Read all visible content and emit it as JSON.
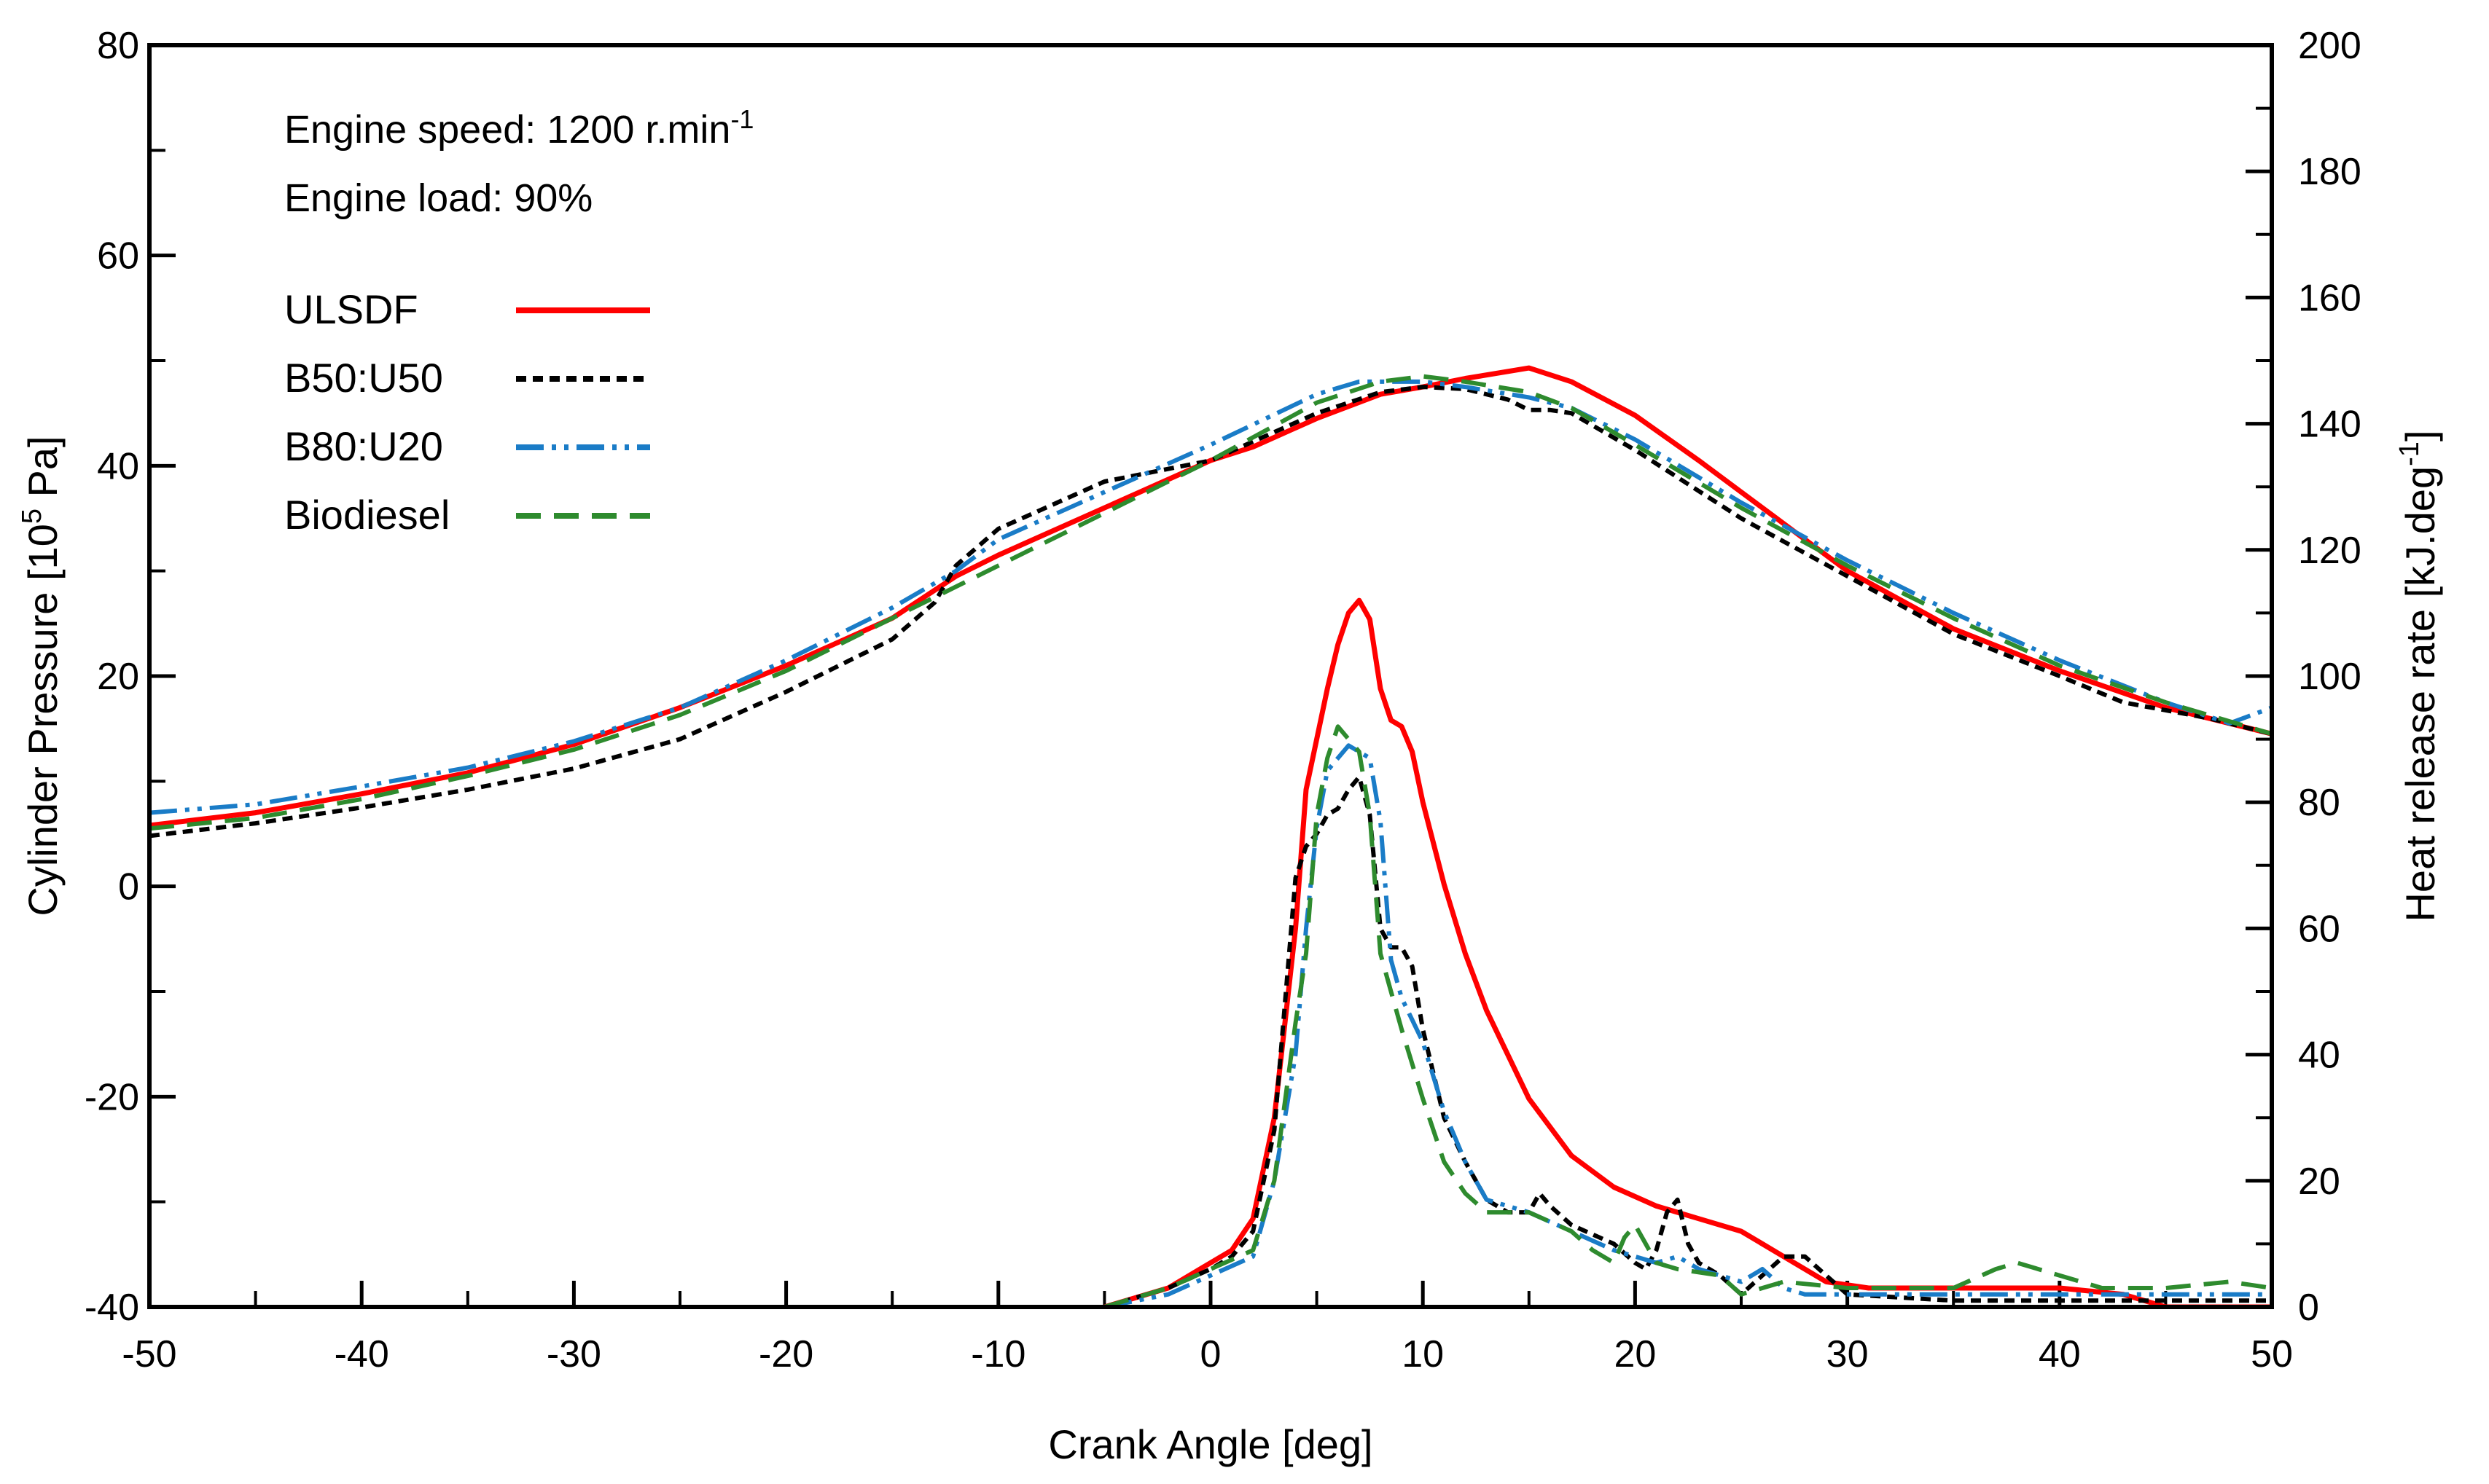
{
  "chart_data": {
    "type": "line",
    "title": "",
    "xlabel": "Crank Angle [deg]",
    "ylabel_left": {
      "prefix": "Cylinder Pressure [10",
      "sup": "5",
      "suffix": " Pa]"
    },
    "ylabel_right": {
      "prefix": "Heat release rate [kJ.deg",
      "sup": "-1",
      "suffix": "]"
    },
    "xlim": [
      -50,
      50
    ],
    "ylim_left": [
      -40,
      80
    ],
    "ylim_right": [
      0,
      200
    ],
    "x_ticks": [
      -50,
      -40,
      -30,
      -20,
      -10,
      0,
      10,
      20,
      30,
      40,
      50
    ],
    "y_left_ticks": [
      -40,
      -20,
      0,
      20,
      40,
      60,
      80
    ],
    "y_right_ticks": [
      0,
      20,
      40,
      60,
      80,
      100,
      120,
      140,
      160,
      180,
      200
    ],
    "annotations": {
      "speed": {
        "prefix": "Engine speed: 1200 r.min",
        "sup": "-1"
      },
      "load": "Engine load: 90%"
    },
    "legend_position": "top-left",
    "series": [
      {
        "name": "ULSDF",
        "color": "#ff0000",
        "dash": "solid",
        "pressure": {
          "x": [
            -50,
            -45,
            -40,
            -35,
            -30,
            -25,
            -20,
            -15,
            -12,
            -10,
            -5,
            0,
            2,
            5,
            8,
            10,
            12,
            15,
            17,
            20,
            23,
            25,
            28,
            30,
            35,
            40,
            45,
            50
          ],
          "y": [
            5.8,
            7.0,
            8.8,
            10.8,
            13.5,
            17.0,
            21.0,
            25.5,
            29.5,
            31.5,
            36.0,
            40.5,
            41.8,
            44.5,
            46.8,
            47.5,
            48.3,
            49.3,
            48.0,
            44.8,
            40.5,
            37.5,
            33.0,
            30.0,
            24.5,
            20.5,
            17.0,
            14.5
          ]
        },
        "hrr": {
          "x": [
            -5,
            -2,
            0,
            1,
            2,
            3,
            4,
            4.5,
            5,
            5.5,
            6,
            6.5,
            7,
            7.5,
            8,
            8.5,
            9,
            9.5,
            10,
            11,
            12,
            13,
            14,
            15,
            17,
            19,
            21,
            23,
            25,
            27,
            29,
            31,
            35,
            40,
            43,
            45,
            47,
            50
          ],
          "y": [
            0,
            3,
            7,
            9,
            14,
            30,
            60,
            82,
            90,
            98,
            105,
            110,
            112,
            109,
            98,
            93,
            92,
            88,
            80,
            67,
            56,
            47,
            40,
            33,
            24,
            19,
            16,
            14,
            12,
            8,
            4,
            3,
            3,
            3,
            2,
            0,
            0,
            0
          ]
        }
      },
      {
        "name": "B50:U50",
        "color": "#000000",
        "dash": "short-dash",
        "pressure": {
          "x": [
            -50,
            -45,
            -40,
            -35,
            -30,
            -25,
            -20,
            -15,
            -13,
            -12,
            -10,
            -5,
            0,
            5,
            8,
            10,
            12,
            14,
            15,
            16,
            17,
            20,
            25,
            30,
            35,
            40,
            43,
            47,
            50
          ],
          "y": [
            4.8,
            6.0,
            7.5,
            9.2,
            11.2,
            14.0,
            18.5,
            23.5,
            27.0,
            30.5,
            34.0,
            38.5,
            40.5,
            45.0,
            47.0,
            47.5,
            47.3,
            46.3,
            45.3,
            45.3,
            45.0,
            41.5,
            35.0,
            29.5,
            24.0,
            20.0,
            17.5,
            16.0,
            14.5
          ]
        },
        "hrr": {
          "x": [
            -5,
            -2,
            0,
            1,
            2,
            3,
            3.5,
            4,
            4.5,
            5,
            5.5,
            6,
            6.5,
            7,
            7.5,
            8,
            8.5,
            9,
            9.5,
            10,
            11,
            12,
            13,
            14,
            15,
            15.5,
            16,
            17,
            19,
            20,
            20.5,
            21,
            21.5,
            22,
            22.5,
            23,
            24,
            25,
            26,
            27,
            28,
            29,
            30,
            35,
            40,
            45,
            50
          ],
          "y": [
            0,
            3,
            6,
            8,
            12,
            28,
            48,
            68,
            73,
            75,
            78,
            79,
            82,
            84,
            78,
            60,
            57,
            57,
            54,
            44,
            30,
            23,
            17,
            15,
            15,
            18,
            16,
            13,
            10,
            7,
            6,
            9,
            15,
            17,
            10,
            7,
            5,
            2,
            5,
            8,
            8,
            5,
            2,
            1,
            1,
            1,
            1
          ]
        }
      },
      {
        "name": "B80:U20",
        "color": "#1a7cc7",
        "dash": "dash-dot-dot",
        "pressure": {
          "x": [
            -50,
            -45,
            -40,
            -35,
            -30,
            -25,
            -20,
            -15,
            -12,
            -10,
            -5,
            0,
            5,
            7,
            10,
            12,
            15,
            17,
            20,
            25,
            30,
            35,
            40,
            45,
            48,
            50
          ],
          "y": [
            7.0,
            7.8,
            9.5,
            11.3,
            13.8,
            17.0,
            21.5,
            26.5,
            30.0,
            33.0,
            37.5,
            42.0,
            46.8,
            48.0,
            48.0,
            47.5,
            46.5,
            45.5,
            42.5,
            36.5,
            31.0,
            26.0,
            21.5,
            17.5,
            15.5,
            17.0
          ]
        },
        "hrr": {
          "x": [
            -5,
            -2,
            0,
            2,
            3,
            4,
            4.5,
            5,
            5.5,
            6,
            6.5,
            7,
            7.5,
            8,
            8.5,
            9,
            10,
            11,
            12,
            13,
            15,
            17,
            19,
            20,
            21,
            22,
            23,
            25,
            26,
            27,
            28,
            30,
            35,
            40,
            45,
            50
          ],
          "y": [
            0,
            2,
            5,
            8,
            20,
            40,
            60,
            76,
            85,
            87,
            89,
            88,
            87,
            77,
            55,
            49,
            42,
            31,
            23,
            17,
            15,
            12,
            9,
            8,
            7,
            8,
            6,
            4,
            6,
            3,
            2,
            2,
            2,
            2,
            2,
            2
          ]
        }
      },
      {
        "name": "Biodiesel",
        "color": "#2e8b2e",
        "dash": "long-dash",
        "pressure": {
          "x": [
            -50,
            -45,
            -40,
            -35,
            -30,
            -25,
            -20,
            -15,
            -12,
            -10,
            -5,
            0,
            5,
            8,
            10,
            12,
            15,
            17,
            20,
            25,
            30,
            35,
            40,
            45,
            50
          ],
          "y": [
            5.5,
            6.5,
            8.3,
            10.5,
            13.0,
            16.3,
            20.5,
            25.5,
            28.5,
            30.5,
            35.5,
            40.5,
            46.0,
            48.0,
            48.5,
            48.0,
            47.0,
            45.5,
            42.0,
            36.0,
            30.5,
            25.5,
            21.0,
            17.5,
            14.5
          ]
        },
        "hrr": {
          "x": [
            -5,
            -2,
            0,
            2,
            3,
            4,
            4.5,
            5,
            5.5,
            6,
            6.5,
            7,
            7.5,
            8,
            8.5,
            9,
            10,
            11,
            12,
            13,
            15,
            17,
            18,
            19,
            19.5,
            20,
            20.5,
            21,
            22,
            24,
            25,
            27,
            30,
            33,
            35,
            37,
            38,
            40,
            42,
            45,
            48,
            50
          ],
          "y": [
            0,
            3,
            6,
            9,
            20,
            45,
            56,
            78,
            87,
            92,
            90,
            88,
            78,
            56,
            50,
            44,
            33,
            23,
            18,
            15,
            15,
            12,
            9,
            7,
            11,
            13,
            10,
            7,
            6,
            5,
            2,
            4,
            3,
            3,
            3,
            6,
            7,
            5,
            3,
            3,
            4,
            3
          ]
        }
      }
    ]
  }
}
